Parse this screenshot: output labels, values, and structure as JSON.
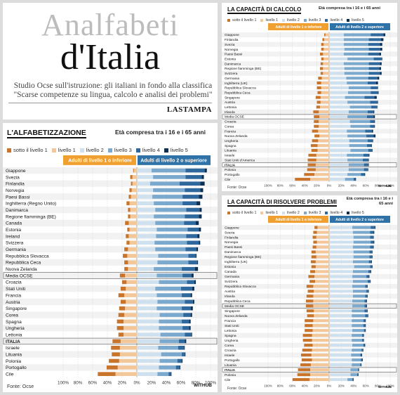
{
  "headline": {
    "title_line1": "Analfabeti",
    "title_line2": "d'Italia",
    "subtitle_lines": [
      "Studio Ocse sull'istruzione: gli italiani in fondo alla classifica",
      "\"Scarse competenze su lingua, calcolo e analisi dei problemi\""
    ],
    "brand": "LASTAMPA"
  },
  "colors": {
    "sotto_1": "#c8742a",
    "livello_1": "#f2c79a",
    "livello_2": "#cfe0ee",
    "livello_3": "#7ba9cd",
    "livello_4": "#2f689c",
    "livello_5": "#0d2f52",
    "header_left": "#f0a030",
    "header_right": "#2f72a8"
  },
  "chart_data": [
    {
      "id": "literacy",
      "type": "bar",
      "stacked": "diverging",
      "title": "L'ALFABETIZZAZIONE",
      "subtitle": "Età compresa tra i 16 e i 65 anni",
      "legend": [
        "sotto il livello 1",
        "livello 1",
        "livello 2",
        "livello 3",
        "livello 4",
        "livello 5"
      ],
      "header_left": "Adulti di livello 1 o inferiore",
      "header_right": "Adulti di livello 2 o superiore",
      "x_ticks": [
        "100%",
        "80%",
        "60%",
        "40%",
        "20%",
        "0%",
        "20%",
        "40%",
        "60%",
        "80%",
        "100%"
      ],
      "source": "Fonte: Ocse",
      "credit": "WITHUB",
      "highlight": [
        "Media OCSE",
        "ITALIA"
      ],
      "categories": [
        "Giappone",
        "Svezia",
        "Finlandia",
        "Norvegia",
        "Paesi Bassi",
        "Inghilterra (Regno Unito)",
        "Danimarca",
        "Regione fiamminga (BE)",
        "Canada",
        "Estonia",
        "Ireland",
        "Svizzera",
        "Germania",
        "Repubblica Slovacca",
        "Repubblica Ceca",
        "Nuova Zelanda",
        "Media OCSE",
        "Croazia",
        "Stati Uniti",
        "Francia",
        "Austria",
        "Singapore",
        "Corea",
        "Spagna",
        "Ungheria",
        "Lettonia",
        "ITALIA",
        "Israele",
        "Lituania",
        "Polonia",
        "Portogallo",
        "Cile"
      ],
      "sotto_1": [
        1,
        3,
        2,
        3,
        3,
        4,
        3,
        3,
        5,
        3,
        4,
        4,
        5,
        6,
        5,
        5,
        7,
        6,
        7,
        8,
        7,
        8,
        8,
        9,
        9,
        7,
        11,
        12,
        11,
        14,
        15,
        24
      ],
      "livello_1": [
        4,
        6,
        6,
        7,
        8,
        10,
        9,
        9,
        11,
        10,
        11,
        10,
        12,
        13,
        12,
        12,
        16,
        14,
        15,
        17,
        15,
        16,
        17,
        18,
        18,
        18,
        22,
        23,
        23,
        24,
        26,
        29
      ],
      "livello_2": [
        20,
        22,
        18,
        22,
        21,
        23,
        25,
        23,
        25,
        27,
        26,
        24,
        25,
        29,
        28,
        23,
        27,
        30,
        25,
        27,
        28,
        27,
        31,
        30,
        30,
        32,
        31,
        29,
        33,
        31,
        30,
        28
      ],
      "livello_3": [
        46,
        44,
        40,
        43,
        41,
        39,
        42,
        42,
        39,
        42,
        41,
        44,
        41,
        41,
        42,
        38,
        35,
        38,
        35,
        34,
        37,
        34,
        32,
        31,
        32,
        33,
        26,
        27,
        28,
        24,
        23,
        15
      ],
      "livello_4": [
        26,
        22,
        28,
        21,
        22,
        19,
        18,
        19,
        16,
        15,
        15,
        16,
        15,
        10,
        12,
        18,
        12,
        10,
        15,
        12,
        11,
        12,
        10,
        10,
        9,
        9,
        8,
        8,
        4,
        6,
        5,
        3
      ],
      "livello_5": [
        3,
        3,
        6,
        4,
        5,
        5,
        3,
        4,
        4,
        3,
        3,
        2,
        2,
        1,
        1,
        4,
        3,
        2,
        3,
        2,
        2,
        3,
        2,
        2,
        2,
        1,
        2,
        1,
        1,
        1,
        1,
        1
      ]
    },
    {
      "id": "numeracy",
      "type": "bar",
      "stacked": "diverging",
      "title": "LA CAPACITÀ DI CALCOLO",
      "subtitle": "Età compresa tra i 16 e i 65 anni",
      "legend": [
        "sotto il livello 1",
        "livello 1",
        "livello 2",
        "livello 3",
        "livello 4",
        "livello 5"
      ],
      "header_left": "Adulti di livello 1 o inferiore",
      "header_right": "Adulti di livello 2 o superiore",
      "x_ticks": [
        "100%",
        "80%",
        "60%",
        "40%",
        "20%",
        "0%",
        "20%",
        "40%",
        "60%",
        "80%",
        "100%"
      ],
      "source": "Fonte: Ocse",
      "credit": "WITHUB",
      "highlight": [
        "Media OCSE",
        "ITALIA"
      ],
      "categories": [
        "Giappone",
        "Finlandia",
        "Svezia",
        "Norvegia",
        "Paesi Bassi",
        "Estonia",
        "Danimarca",
        "Regione fiamminga (BE)",
        "Svizzera",
        "Germania",
        "Inghilterra (UK)",
        "Repubblica Slovacca",
        "Repubblica Ceca",
        "Singapore",
        "Austria",
        "Lettonia",
        "Irlanda",
        "Media OCSE",
        "Croazia",
        "Corea",
        "Francia",
        "Nuova Zelanda",
        "Ungheria",
        "Spagna",
        "Lituania",
        "Israele",
        "Stati Uniti d'America",
        "ITALIA",
        "Polonia",
        "Portogallo",
        "Cile"
      ],
      "sotto_1": [
        2,
        3,
        4,
        4,
        5,
        4,
        4,
        5,
        4,
        6,
        7,
        7,
        6,
        8,
        6,
        6,
        9,
        9,
        8,
        8,
        10,
        8,
        10,
        11,
        10,
        13,
        14,
        13,
        14,
        17,
        25
      ],
      "livello_1": [
        6,
        8,
        9,
        9,
        10,
        9,
        10,
        10,
        10,
        12,
        13,
        13,
        13,
        14,
        14,
        15,
        17,
        16,
        17,
        17,
        18,
        16,
        18,
        19,
        19,
        21,
        21,
        22,
        22,
        24,
        31
      ],
      "livello_2": [
        24,
        24,
        24,
        25,
        24,
        30,
        24,
        25,
        25,
        28,
        29,
        32,
        31,
        26,
        30,
        34,
        32,
        30,
        34,
        35,
        29,
        30,
        33,
        33,
        35,
        29,
        30,
        32,
        32,
        30,
        26
      ],
      "livello_3": [
        44,
        41,
        40,
        40,
        40,
        43,
        41,
        40,
        40,
        36,
        34,
        36,
        37,
        32,
        37,
        35,
        31,
        32,
        33,
        32,
        30,
        31,
        30,
        29,
        29,
        27,
        25,
        25,
        25,
        22,
        14
      ],
      "livello_4": [
        21,
        20,
        19,
        19,
        18,
        13,
        18,
        17,
        18,
        15,
        14,
        11,
        12,
        16,
        12,
        9,
        10,
        11,
        7,
        7,
        11,
        12,
        8,
        7,
        6,
        9,
        9,
        7,
        6,
        6,
        3
      ],
      "livello_5": [
        3,
        4,
        4,
        3,
        3,
        1,
        3,
        3,
        3,
        3,
        3,
        1,
        1,
        4,
        1,
        1,
        1,
        2,
        1,
        1,
        2,
        3,
        1,
        1,
        1,
        1,
        1,
        1,
        1,
        1,
        1
      ]
    },
    {
      "id": "problem_solving",
      "type": "bar",
      "stacked": "diverging",
      "title": "LA CAPACITÀ DI RISOLVERE PROBLEMI",
      "subtitle": "Età compresa tra i 16 e i 65 anni",
      "legend": [
        "sotto il livello 1",
        "livello 1",
        "livello 2",
        "livello 3",
        "livello 4",
        "livello 5"
      ],
      "header_left": "Adulti di livello 1 o inferiore",
      "header_right": "Adulti di livello 2 o superiore",
      "x_ticks": [
        "100%",
        "80%",
        "60%",
        "40%",
        "20%",
        "0%",
        "20%",
        "40%",
        "60%",
        "80%",
        "100%"
      ],
      "source": "Fonte: Ocse",
      "credit": "WITHUB",
      "highlight": [
        "Media OCSE",
        "ITALIA"
      ],
      "categories": [
        "Giappone",
        "Svezia",
        "Finlandia",
        "Norvegia",
        "Paesi Bassi",
        "Danimarca",
        "Regione fiamminga (BE)",
        "Inghilterra (UK)",
        "Estonia",
        "Canada",
        "Germania",
        "Svizzera",
        "Repubblica Slovacca",
        "Austria",
        "Irlanda",
        "Repubblica Ceca",
        "Media OCSE",
        "Singapore",
        "Nuova Zelanda",
        "Francia",
        "Stati Uniti",
        "Lettonia",
        "Spagna",
        "Ungheria",
        "Corea",
        "Croazia",
        "Israele",
        "Portogallo",
        "Lituania",
        "ITALIA",
        "Polonia",
        "Cile"
      ],
      "sotto_1": [
        5,
        6,
        6,
        6,
        6,
        7,
        8,
        8,
        7,
        8,
        10,
        9,
        11,
        10,
        11,
        12,
        12,
        12,
        11,
        14,
        13,
        13,
        15,
        15,
        14,
        16,
        17,
        17,
        17,
        20,
        21,
        28
      ],
      "livello_1": [
        19,
        20,
        21,
        20,
        21,
        22,
        21,
        22,
        22,
        23,
        24,
        23,
        26,
        25,
        26,
        26,
        26,
        25,
        25,
        26,
        27,
        27,
        28,
        28,
        27,
        28,
        29,
        28,
        30,
        31,
        31,
        32
      ],
      "livello_2": [
        38,
        39,
        40,
        40,
        39,
        40,
        40,
        39,
        41,
        39,
        38,
        39,
        38,
        39,
        39,
        38,
        38,
        37,
        37,
        37,
        37,
        38,
        37,
        37,
        38,
        37,
        36,
        37,
        37,
        35,
        35,
        30
      ],
      "livello_3": [
        30,
        28,
        27,
        28,
        28,
        26,
        26,
        26,
        26,
        25,
        23,
        24,
        21,
        22,
        20,
        20,
        20,
        21,
        22,
        19,
        19,
        19,
        17,
        17,
        18,
        16,
        15,
        15,
        14,
        12,
        11,
        8
      ],
      "livello_4": [
        7,
        6,
        5,
        5,
        5,
        4,
        4,
        4,
        3,
        4,
        4,
        4,
        3,
        3,
        3,
        3,
        3,
        4,
        4,
        3,
        3,
        2,
        2,
        2,
        2,
        2,
        2,
        2,
        1,
        1,
        1,
        1
      ],
      "livello_5": [
        1,
        1,
        1,
        1,
        1,
        1,
        1,
        1,
        1,
        1,
        1,
        1,
        1,
        1,
        1,
        1,
        1,
        1,
        1,
        1,
        1,
        1,
        1,
        1,
        1,
        1,
        1,
        1,
        1,
        1,
        1,
        1
      ]
    }
  ]
}
